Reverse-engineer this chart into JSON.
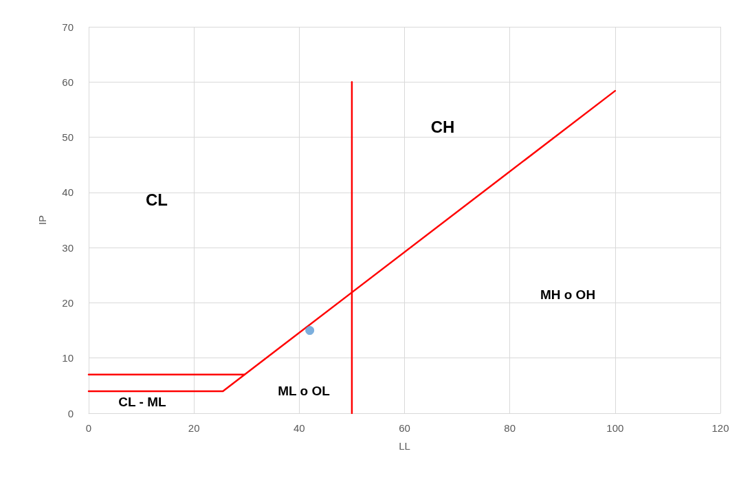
{
  "chart_data": {
    "type": "line",
    "xlabel": "LL",
    "ylabel": "IP",
    "xlim": [
      0,
      120
    ],
    "xticks": [
      0,
      20,
      40,
      60,
      80,
      100,
      120
    ],
    "ylim": [
      0,
      70
    ],
    "yticks": [
      0,
      10,
      20,
      30,
      40,
      50,
      60,
      70
    ],
    "grid": true,
    "marker": "none",
    "line_style": "solid",
    "series": [
      {
        "color": "#ff0000",
        "x": [
          0,
          25.5,
          100
        ],
        "values": [
          4,
          4,
          58.4
        ]
      },
      {
        "color": "#ff0000",
        "x": [
          0,
          29.6
        ],
        "values": [
          7,
          7
        ]
      },
      {
        "color": "#ff0000",
        "x": [
          50,
          50
        ],
        "values": [
          0,
          60
        ]
      },
      {
        "type": "scatter",
        "marker": "circle",
        "color": "#5b9bd5",
        "x": [
          42
        ],
        "values": [
          15
        ]
      }
    ],
    "annotations": [
      "CL",
      "CH",
      "MH o OH",
      "ML o OL",
      "CL - ML"
    ]
  }
}
